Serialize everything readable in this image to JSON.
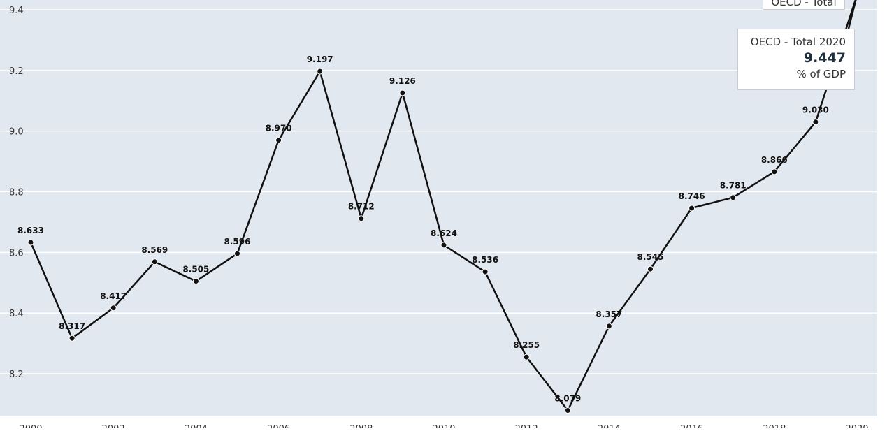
{
  "chart_data": {
    "type": "line",
    "series": [
      {
        "name": "OECD - Total",
        "x": [
          2000,
          2001,
          2002,
          2003,
          2004,
          2005,
          2006,
          2007,
          2008,
          2009,
          2010,
          2011,
          2012,
          2013,
          2014,
          2015,
          2016,
          2017,
          2018,
          2019,
          2020
        ],
        "values": [
          8.633,
          8.317,
          8.417,
          8.569,
          8.505,
          8.596,
          8.97,
          9.197,
          8.712,
          9.126,
          8.624,
          8.536,
          8.255,
          8.079,
          8.357,
          8.545,
          8.746,
          8.781,
          8.866,
          9.03,
          9.447
        ],
        "labels": [
          "8.633",
          "8.317",
          "8.417",
          "8.569",
          "8.505",
          "8.596",
          "8.970",
          "9.197",
          "8.712",
          "9.126",
          "8.624",
          "8.536",
          "8.255",
          "8.079",
          "8.357",
          "8.545",
          "8.746",
          "8.781",
          "8.866",
          "9.030",
          ""
        ]
      }
    ],
    "y_ticks": [
      "8.2",
      "8.4",
      "8.6",
      "8.8",
      "9.0",
      "9.2",
      "9.4"
    ],
    "y_tick_values": [
      8.2,
      8.4,
      8.6,
      8.8,
      9.0,
      9.2,
      9.4
    ],
    "x_ticks": [
      "2000",
      "2002",
      "2004",
      "2006",
      "2008",
      "2010",
      "2012",
      "2014",
      "2016",
      "2018",
      "2020"
    ],
    "x_tick_values": [
      2000,
      2002,
      2004,
      2006,
      2008,
      2010,
      2012,
      2014,
      2016,
      2018,
      2020
    ],
    "ylim": [
      8.05,
      9.45
    ],
    "xlim": [
      2000,
      2020
    ],
    "grid": true,
    "colors": {
      "background": "#e2e8ef",
      "grid": "#ffffff",
      "line": "#111111"
    }
  },
  "tooltip": {
    "header": "OECD - Total 2020",
    "value": "9.447",
    "unit": "% of GDP"
  },
  "series_tag": "OECD - Total"
}
